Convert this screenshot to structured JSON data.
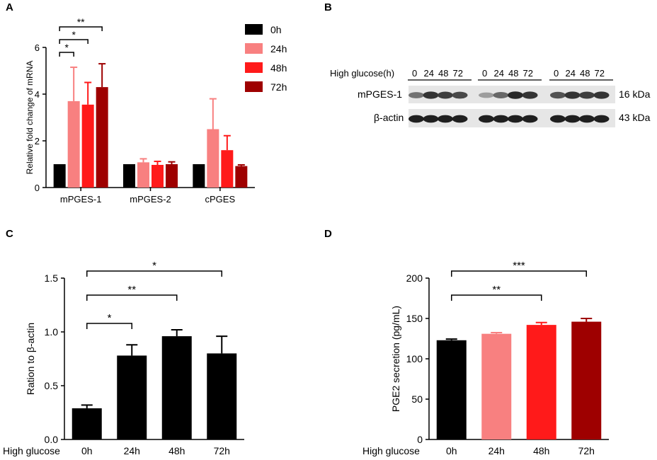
{
  "panels": {
    "a": "A",
    "b": "B",
    "c": "C",
    "d": "D"
  },
  "colors": {
    "0h": "#000000",
    "24h": "#f88080",
    "48h": "#ff1a1a",
    "72h": "#9e0000"
  },
  "chart_data": [
    {
      "id": "A",
      "type": "bar",
      "title": "",
      "xlabel": "",
      "ylabel": "Relative fold change of mRNA",
      "categories": [
        "mPGES-1",
        "mPGES-2",
        "cPGES"
      ],
      "series": [
        {
          "name": "0h",
          "color": "#000000",
          "values": [
            1.0,
            1.0,
            1.0
          ],
          "errors": [
            0.0,
            0.0,
            0.0
          ]
        },
        {
          "name": "24h",
          "color": "#f88080",
          "values": [
            3.7,
            1.08,
            2.5
          ],
          "errors": [
            1.45,
            0.15,
            1.3
          ]
        },
        {
          "name": "48h",
          "color": "#ff1a1a",
          "values": [
            3.55,
            0.97,
            1.6
          ],
          "errors": [
            0.95,
            0.15,
            0.62
          ]
        },
        {
          "name": "72h",
          "color": "#9e0000",
          "values": [
            4.3,
            1.0,
            0.92
          ],
          "errors": [
            1.0,
            0.1,
            0.05
          ]
        }
      ],
      "ylim": [
        0,
        6
      ],
      "yticks": [
        0,
        2,
        4,
        6
      ],
      "legend": [
        "0h",
        "24h",
        "48h",
        "72h"
      ],
      "significance": [
        {
          "label": "*",
          "from": "0h",
          "to": "24h"
        },
        {
          "label": "*",
          "from": "0h",
          "to": "48h"
        },
        {
          "label": "**",
          "from": "0h",
          "to": "72h"
        }
      ]
    },
    {
      "id": "C",
      "type": "bar",
      "ylabel": "Ration to β-actin",
      "xlabel": "High glucose",
      "categories": [
        "0h",
        "24h",
        "48h",
        "72h"
      ],
      "values": [
        0.29,
        0.78,
        0.96,
        0.8
      ],
      "errors": [
        0.03,
        0.1,
        0.06,
        0.16
      ],
      "colors": [
        "#000000",
        "#000000",
        "#000000",
        "#000000"
      ],
      "ylim": [
        0,
        1.5
      ],
      "yticks": [
        "0.0",
        "0.5",
        "1.0",
        "1.5"
      ],
      "significance": [
        {
          "label": "*",
          "from": "0h",
          "to": "24h"
        },
        {
          "label": "**",
          "from": "0h",
          "to": "48h"
        },
        {
          "label": "*",
          "from": "0h",
          "to": "72h"
        }
      ]
    },
    {
      "id": "D",
      "type": "bar",
      "ylabel": "PGE2 secretion (pg/mL)",
      "xlabel": "High glucose",
      "categories": [
        "0h",
        "24h",
        "48h",
        "72h"
      ],
      "values": [
        123,
        131,
        142,
        146
      ],
      "errors": [
        1.5,
        1.5,
        3,
        4
      ],
      "colors": [
        "#000000",
        "#f88080",
        "#ff1a1a",
        "#9e0000"
      ],
      "ylim": [
        0,
        200
      ],
      "yticks": [
        "0",
        "50",
        "100",
        "150",
        "200"
      ],
      "significance": [
        {
          "label": "**",
          "from": "0h",
          "to": "48h"
        },
        {
          "label": "***",
          "from": "0h",
          "to": "72h"
        }
      ]
    }
  ],
  "blot": {
    "condition_label": "High glucose(h)",
    "groups": [
      [
        "0",
        "24",
        "48",
        "72"
      ],
      [
        "0",
        "24",
        "48",
        "72"
      ],
      [
        "0",
        "24",
        "48",
        "72"
      ]
    ],
    "bands": [
      {
        "name": "mPGES-1",
        "kda": "16 kDa",
        "intensities": [
          0.55,
          0.85,
          0.8,
          0.75,
          0.35,
          0.6,
          0.9,
          0.85,
          0.7,
          0.85,
          0.8,
          0.85
        ]
      },
      {
        "name": "β-actin",
        "kda": "43 kDa",
        "intensities": [
          0.95,
          0.95,
          0.95,
          0.95,
          0.95,
          0.95,
          0.95,
          0.95,
          0.95,
          0.95,
          0.95,
          0.95
        ]
      }
    ]
  }
}
